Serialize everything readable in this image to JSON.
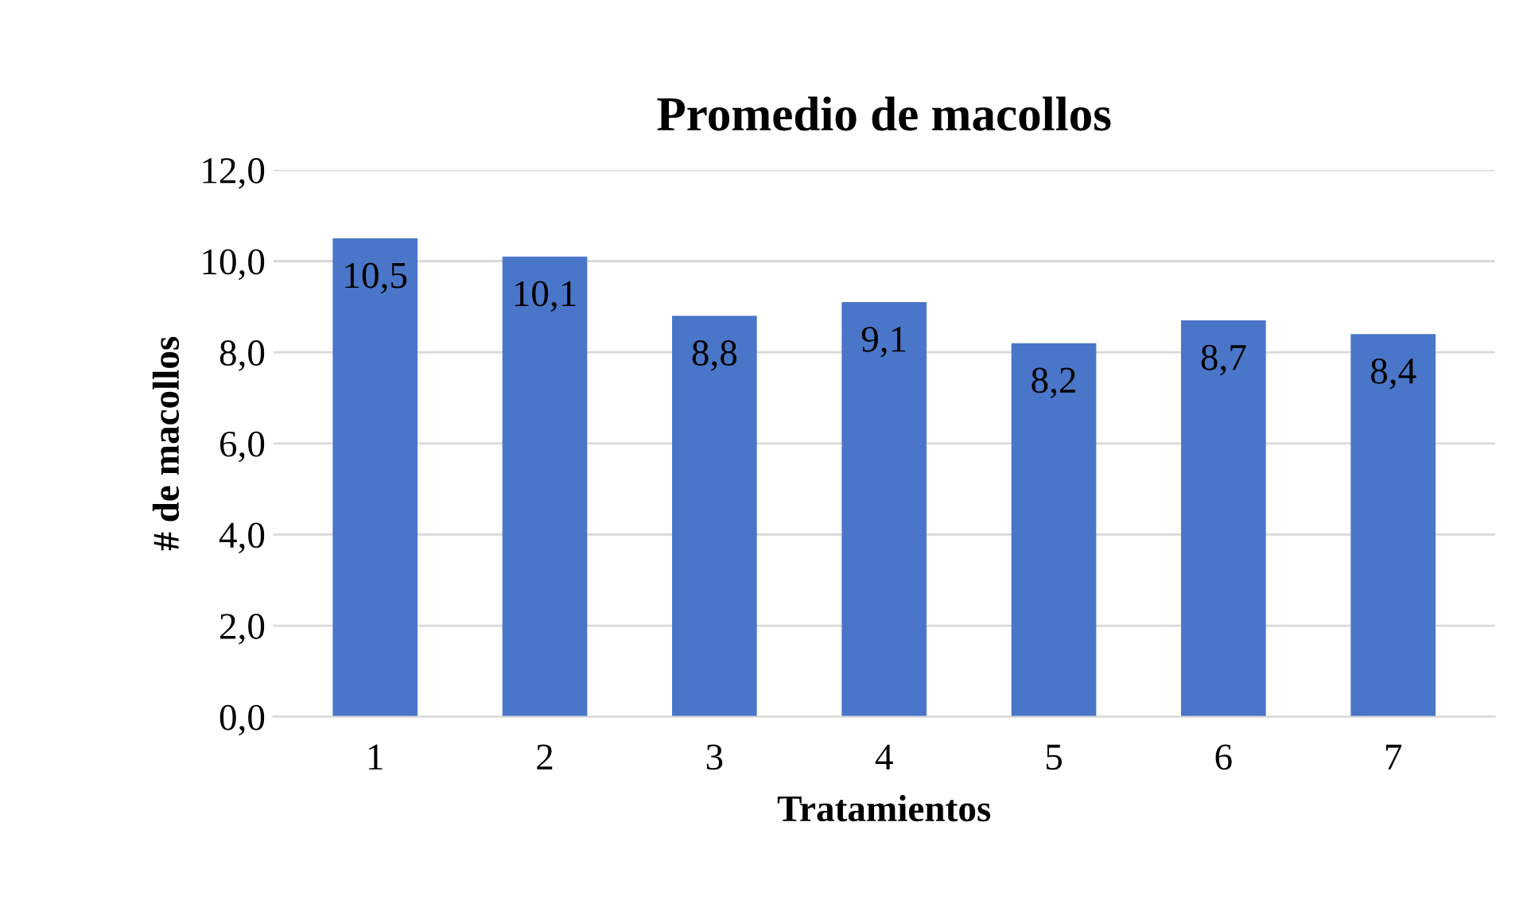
{
  "chart_data": {
    "type": "bar",
    "title": "Promedio de macollos",
    "xlabel": "Tratamientos",
    "ylabel": "# de macollos",
    "categories": [
      "1",
      "2",
      "3",
      "4",
      "5",
      "6",
      "7"
    ],
    "values": [
      10.5,
      10.1,
      8.8,
      9.1,
      8.2,
      8.7,
      8.4
    ],
    "value_labels": [
      "10,5",
      "10,1",
      "8,8",
      "9,1",
      "8,2",
      "8,7",
      "8,4"
    ],
    "color": "#4a76c9",
    "ylim": [
      0,
      12
    ],
    "yticks": [
      {
        "value": 0,
        "label": "0,0"
      },
      {
        "value": 2,
        "label": "2,0"
      },
      {
        "value": 4,
        "label": "4,0"
      },
      {
        "value": 6,
        "label": "6,0"
      },
      {
        "value": 8,
        "label": "8,0"
      },
      {
        "value": 10,
        "label": "10,0"
      },
      {
        "value": 12,
        "label": "12,0"
      }
    ],
    "grid": "y",
    "legend": false
  }
}
